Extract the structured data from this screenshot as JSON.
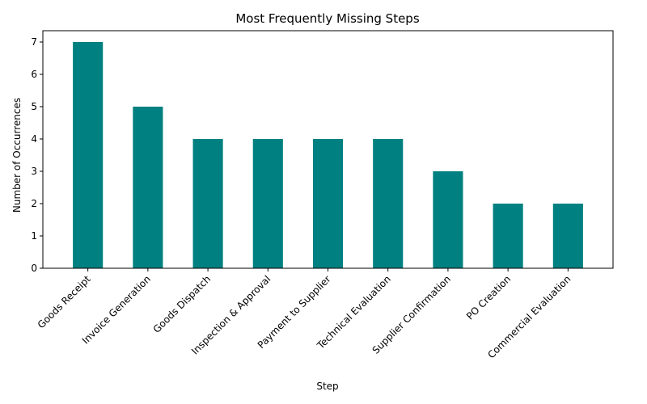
{
  "chart_data": {
    "type": "bar",
    "title": "Most Frequently Missing Steps",
    "xlabel": "Step",
    "ylabel": "Number of Occurrences",
    "categories": [
      "Goods Receipt",
      "Invoice Generation",
      "Goods Dispatch",
      "Inspection & Approval",
      "Payment to Supplier",
      "Technical Evaluation",
      "Supplier Confirmation",
      "PO Creation",
      "Commercial Evaluation"
    ],
    "values": [
      7,
      5,
      4,
      4,
      4,
      4,
      3,
      2,
      2
    ],
    "ylim": [
      0,
      7.35
    ],
    "yticks": [
      0,
      1,
      2,
      3,
      4,
      5,
      6,
      7
    ],
    "bar_color": "#008080",
    "grid": false,
    "legend": "none"
  }
}
